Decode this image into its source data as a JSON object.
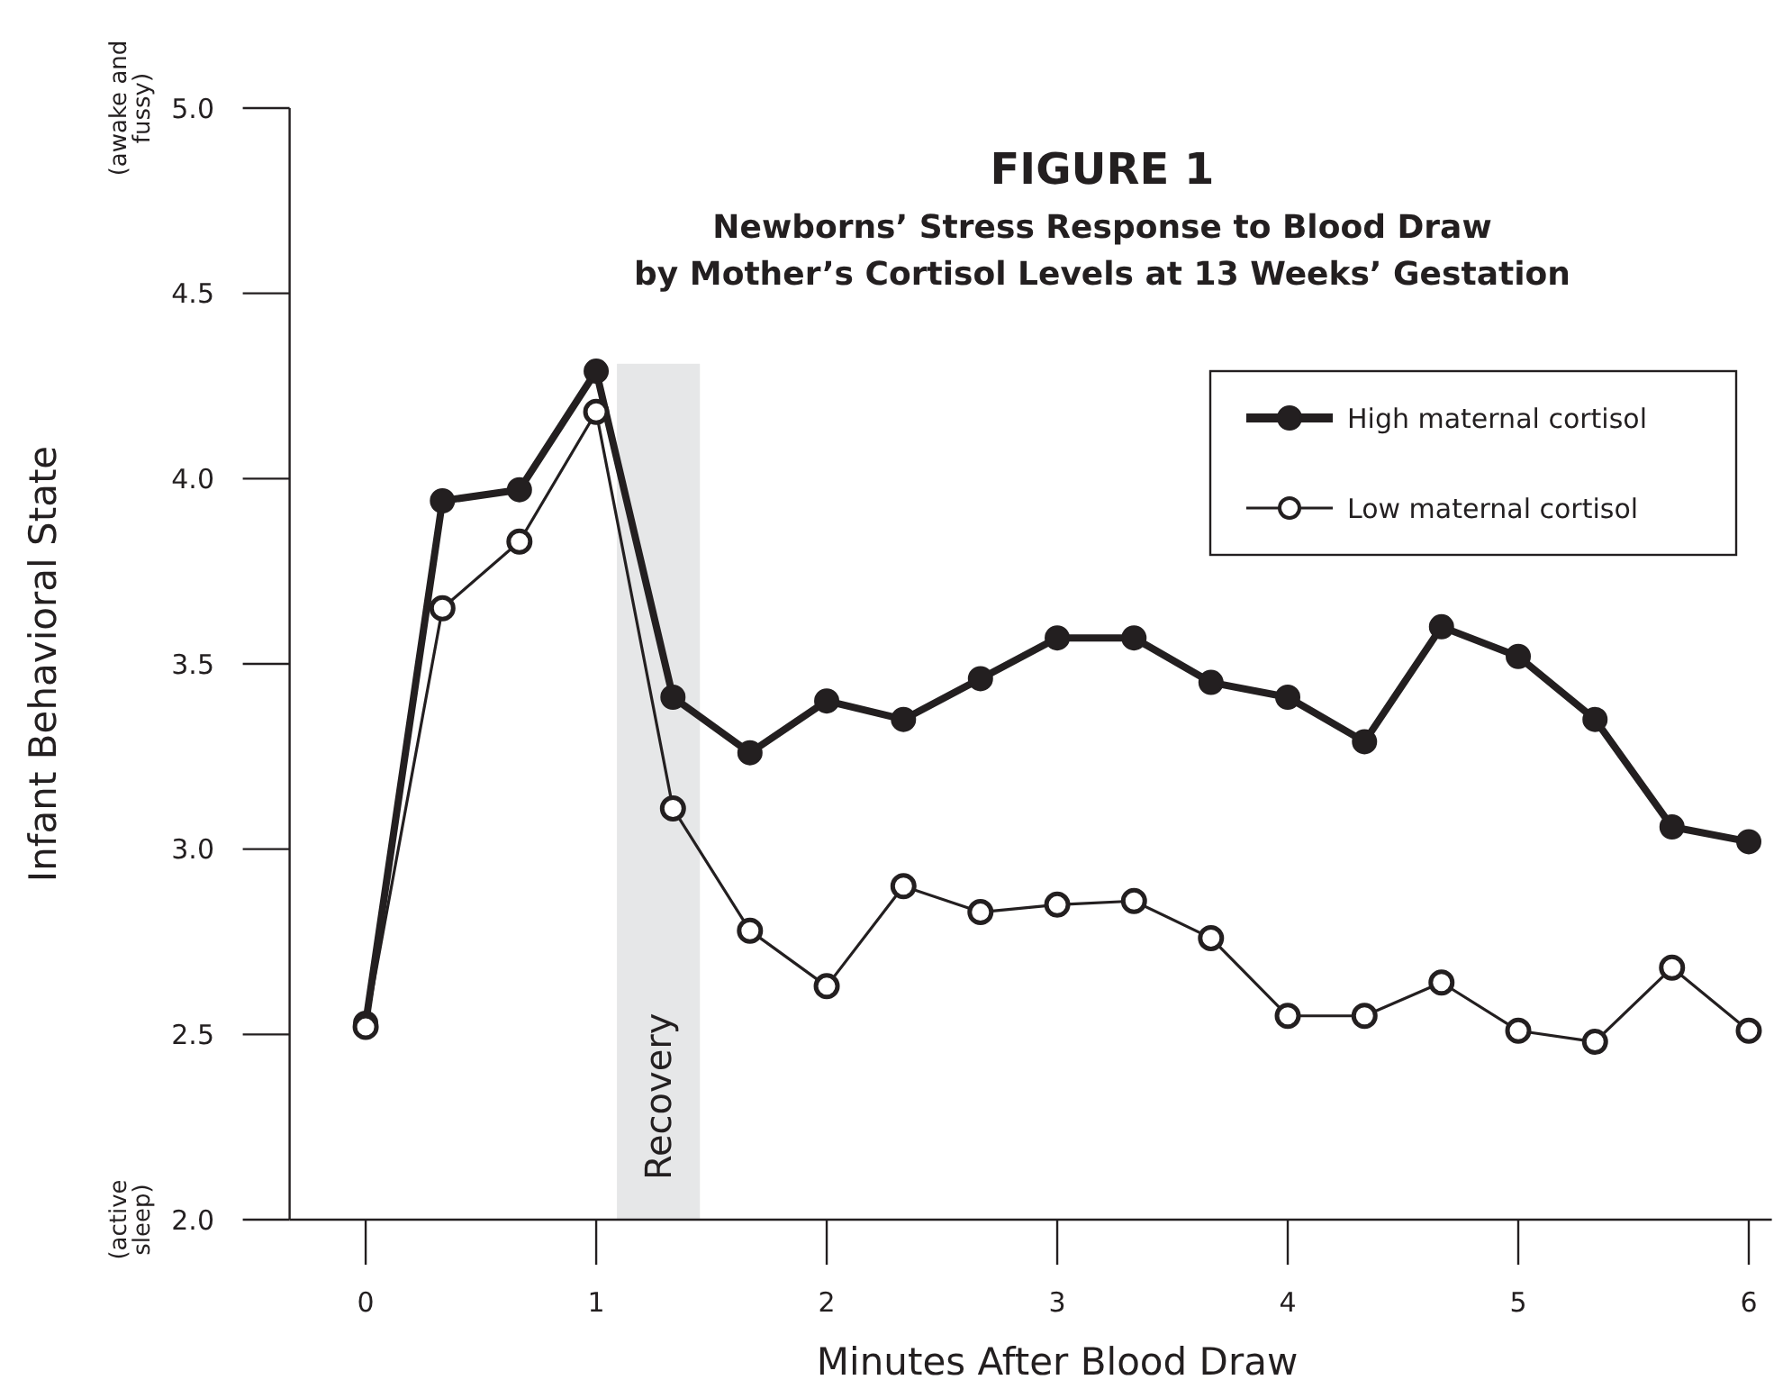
{
  "chart_data": {
    "type": "line",
    "title": "FIGURE 1",
    "subtitle": "Newborns’ Stress Response to Blood Draw\nby Mother’s Cortisol Levels at 13 Weeks’ Gestation",
    "xlabel": "Minutes After Blood Draw",
    "ylabel": "Infant Behavioral State",
    "x": [
      0,
      0.333,
      0.667,
      1,
      1.333,
      1.667,
      2,
      2.333,
      2.667,
      3,
      3.333,
      3.667,
      4,
      4.333,
      4.667,
      5,
      5.333,
      5.667,
      6
    ],
    "series": [
      {
        "name": "High maternal cortisol",
        "color": "#231f20",
        "values": [
          2.53,
          3.94,
          3.97,
          4.29,
          3.41,
          3.26,
          3.4,
          3.35,
          3.46,
          3.57,
          3.57,
          3.45,
          3.41,
          3.29,
          3.6,
          3.52,
          3.35,
          3.06,
          3.02
        ]
      },
      {
        "name": "Low maternal cortisol",
        "color": "#231f20",
        "values": [
          2.52,
          3.65,
          3.83,
          4.18,
          3.11,
          2.78,
          2.63,
          2.9,
          2.83,
          2.85,
          2.86,
          2.76,
          2.55,
          2.55,
          2.64,
          2.51,
          2.48,
          2.68,
          2.51
        ]
      }
    ],
    "xlim": [
      -0.33,
      6.1
    ],
    "ylim": [
      2,
      5
    ],
    "xticks": [
      0,
      1,
      2,
      3,
      4,
      5,
      6
    ],
    "yticks": [
      {
        "value": 2,
        "label": "2.0"
      },
      2.5,
      {
        "value": 3,
        "label": "3.0"
      },
      3.5,
      {
        "value": 4,
        "label": "4.0"
      },
      4.5,
      {
        "value": 5,
        "label": "5.0"
      }
    ],
    "bands": [
      {
        "axis": "x",
        "from": 1.09,
        "to": 1.45,
        "label": "Recovery",
        "color": "#e6e7e8"
      }
    ],
    "annotations": [
      "(awake and fussy)",
      "(active sleep)"
    ],
    "legend": "top right",
    "marker": "circle",
    "line_style": "solid"
  }
}
